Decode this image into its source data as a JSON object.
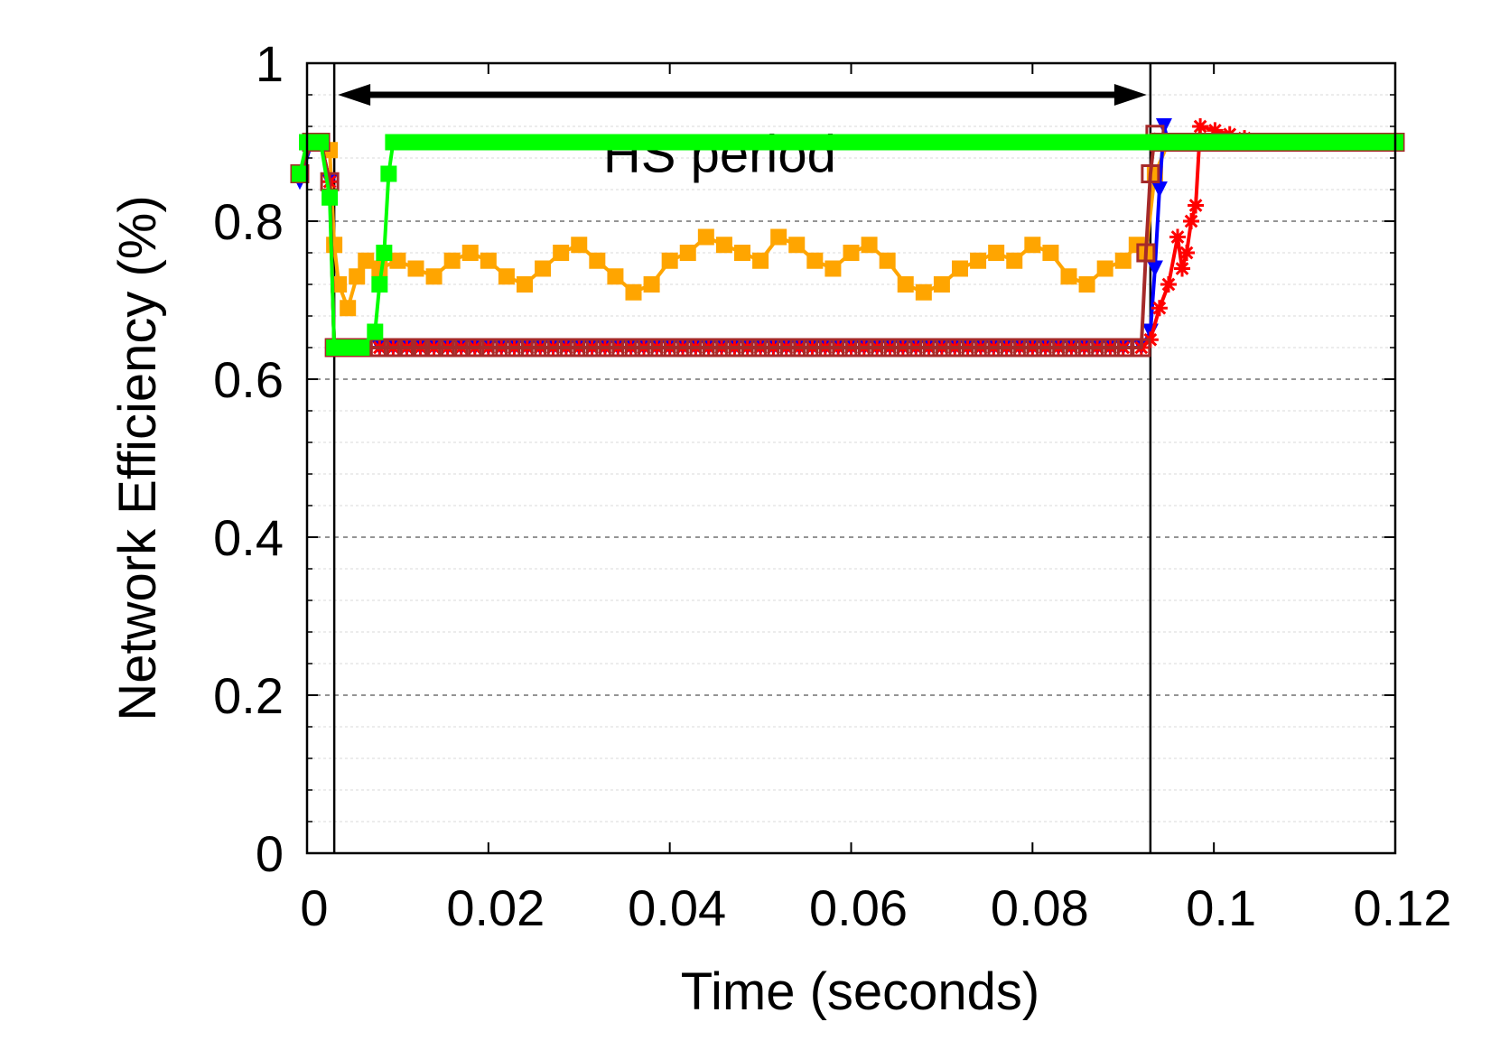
{
  "chart_data": {
    "type": "line",
    "title": "",
    "xlabel": "Time (seconds)",
    "ylabel": "Network Efficiency (%)",
    "xlim": [
      0,
      0.12
    ],
    "ylim": [
      0,
      1
    ],
    "x_ticks": [
      "0",
      "0.02",
      "0.04",
      "0.06",
      "0.08",
      "0.1",
      "0.12"
    ],
    "x_tick_values": [
      0,
      0.02,
      0.04,
      0.06,
      0.08,
      0.1,
      0.12
    ],
    "y_ticks": [
      "0",
      "0.2",
      "0.4",
      "0.6",
      "0.8",
      "1"
    ],
    "y_tick_values": [
      0,
      0.2,
      0.4,
      0.6,
      0.8,
      1
    ],
    "grid": true,
    "annotation": {
      "text": "HS period",
      "x_start": 0.003,
      "x_end": 0.093,
      "y": 0.96,
      "text_x": 0.0455,
      "text_y": 0.885
    },
    "vertical_lines": [
      0.003,
      0.093
    ],
    "series": [
      {
        "color": "#ffa500",
        "marker": "filled-square",
        "x": [
          -0.0008,
          0.0005,
          0.0015,
          0.0025,
          0.003,
          0.0035,
          0.0045,
          0.0055,
          0.0065,
          0.008,
          0.01,
          0.012,
          0.014,
          0.016,
          0.018,
          0.02,
          0.022,
          0.024,
          0.026,
          0.028,
          0.03,
          0.032,
          0.034,
          0.036,
          0.038,
          0.04,
          0.042,
          0.044,
          0.046,
          0.048,
          0.05,
          0.052,
          0.054,
          0.056,
          0.058,
          0.06,
          0.062,
          0.064,
          0.066,
          0.068,
          0.07,
          0.072,
          0.074,
          0.076,
          0.078,
          0.08,
          0.082,
          0.084,
          0.086,
          0.088,
          0.09,
          0.0915,
          0.0925,
          0.0935,
          0.095,
          0.097,
          0.099,
          0.105,
          0.11,
          0.115,
          0.12
        ],
        "y": [
          0.86,
          0.9,
          0.9,
          0.89,
          0.77,
          0.72,
          0.69,
          0.73,
          0.75,
          0.74,
          0.75,
          0.74,
          0.73,
          0.75,
          0.76,
          0.75,
          0.73,
          0.72,
          0.74,
          0.76,
          0.77,
          0.75,
          0.73,
          0.71,
          0.72,
          0.75,
          0.76,
          0.78,
          0.77,
          0.76,
          0.75,
          0.78,
          0.77,
          0.75,
          0.74,
          0.76,
          0.77,
          0.75,
          0.72,
          0.71,
          0.72,
          0.74,
          0.75,
          0.76,
          0.75,
          0.77,
          0.76,
          0.73,
          0.72,
          0.74,
          0.75,
          0.77,
          0.76,
          0.86,
          0.9,
          0.9,
          0.9,
          0.9,
          0.9,
          0.9,
          0.9
        ]
      },
      {
        "color": "#0000ff",
        "marker": "filled-triangle-down",
        "x": [
          -0.0008,
          0.0005,
          0.0015,
          0.0025,
          0.003,
          0.004,
          0.006,
          0.008,
          0.02,
          0.04,
          0.06,
          0.08,
          0.09,
          0.092,
          0.093,
          0.0935,
          0.094,
          0.0945,
          0.095,
          0.096,
          0.098,
          0.105,
          0.11,
          0.115,
          0.12
        ],
        "y": [
          0.85,
          0.9,
          0.9,
          0.85,
          0.64,
          0.64,
          0.64,
          0.64,
          0.64,
          0.64,
          0.64,
          0.64,
          0.64,
          0.64,
          0.66,
          0.74,
          0.84,
          0.92,
          0.9,
          0.9,
          0.9,
          0.9,
          0.9,
          0.9,
          0.9
        ]
      },
      {
        "color": "#ff0000",
        "marker": "star",
        "x": [
          -0.0008,
          0.0005,
          0.0015,
          0.0025,
          0.003,
          0.004,
          0.006,
          0.008,
          0.02,
          0.04,
          0.06,
          0.08,
          0.09,
          0.092,
          0.093,
          0.094,
          0.095,
          0.096,
          0.0965,
          0.097,
          0.0975,
          0.098,
          0.0985,
          0.105,
          0.11,
          0.115,
          0.12
        ],
        "y": [
          0.86,
          0.9,
          0.9,
          0.85,
          0.64,
          0.64,
          0.64,
          0.64,
          0.64,
          0.64,
          0.64,
          0.64,
          0.64,
          0.64,
          0.65,
          0.69,
          0.72,
          0.78,
          0.74,
          0.76,
          0.8,
          0.82,
          0.92,
          0.9,
          0.9,
          0.9,
          0.9
        ]
      },
      {
        "color": "#a52a2a",
        "marker": "open-square",
        "x": [
          -0.0008,
          0.0005,
          0.0015,
          0.0025,
          0.003,
          0.004,
          0.006,
          0.008,
          0.02,
          0.04,
          0.06,
          0.08,
          0.09,
          0.092,
          0.0925,
          0.093,
          0.0935,
          0.094,
          0.096,
          0.1,
          0.105,
          0.11,
          0.115,
          0.12
        ],
        "y": [
          0.86,
          0.9,
          0.9,
          0.85,
          0.64,
          0.64,
          0.64,
          0.64,
          0.64,
          0.64,
          0.64,
          0.64,
          0.64,
          0.64,
          0.76,
          0.86,
          0.91,
          0.9,
          0.9,
          0.9,
          0.9,
          0.9,
          0.9,
          0.9
        ]
      },
      {
        "color": "#00ff00",
        "marker": "filled-square",
        "x": [
          -0.0008,
          0.0,
          0.0015,
          0.0025,
          0.003,
          0.004,
          0.005,
          0.006,
          0.0075,
          0.008,
          0.0085,
          0.009,
          0.0095,
          0.01,
          0.02,
          0.04,
          0.06,
          0.08,
          0.093,
          0.105,
          0.11,
          0.115,
          0.12
        ],
        "y": [
          0.86,
          0.9,
          0.9,
          0.83,
          0.64,
          0.64,
          0.64,
          0.64,
          0.66,
          0.72,
          0.76,
          0.86,
          0.9,
          0.9,
          0.9,
          0.9,
          0.9,
          0.9,
          0.9,
          0.9,
          0.9,
          0.9,
          0.9
        ]
      }
    ]
  }
}
